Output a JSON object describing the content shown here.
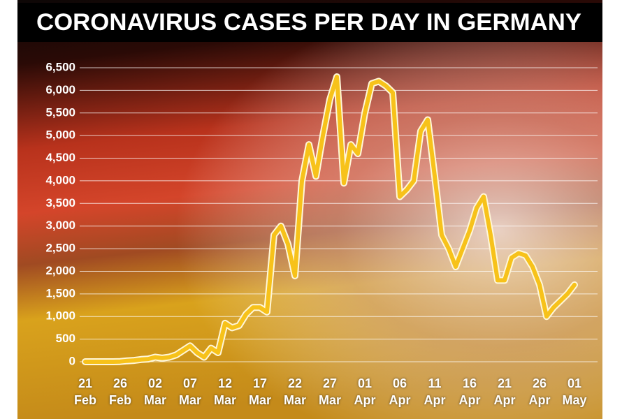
{
  "chart_data": {
    "type": "line",
    "title": "CORONAVIRUS CASES PER DAY IN GERMANY",
    "categories": [
      "21 Feb",
      null,
      null,
      null,
      null,
      "26 Feb",
      null,
      null,
      null,
      null,
      "02 Mar",
      null,
      null,
      null,
      null,
      "07 Mar",
      null,
      null,
      null,
      null,
      "12 Mar",
      null,
      null,
      null,
      null,
      "17 Mar",
      null,
      null,
      null,
      null,
      "22 Mar",
      null,
      null,
      null,
      null,
      "27 Mar",
      null,
      null,
      null,
      null,
      "01 Apr",
      null,
      null,
      null,
      null,
      "06 Apr",
      null,
      null,
      null,
      null,
      "11 Apr",
      null,
      null,
      null,
      null,
      "16 Apr",
      null,
      null,
      null,
      null,
      "21 Apr",
      null,
      null,
      null,
      null,
      "26 Apr",
      null,
      null,
      null,
      null,
      "01 May"
    ],
    "series": [
      {
        "name": "Cases per day",
        "color": "#f7c21a",
        "values": [
          0,
          0,
          0,
          0,
          0,
          5,
          20,
          30,
          50,
          60,
          100,
          80,
          100,
          150,
          250,
          350,
          200,
          100,
          300,
          200,
          850,
          750,
          800,
          1050,
          1200,
          1200,
          1100,
          2800,
          3000,
          2600,
          1900,
          4000,
          4800,
          4100,
          5000,
          5800,
          6300,
          3950,
          4800,
          4600,
          5500,
          6150,
          6200,
          6100,
          5950,
          3650,
          3800,
          4000,
          5100,
          5350,
          4100,
          2800,
          2500,
          2100,
          2500,
          2900,
          3400,
          3650,
          2800,
          1800,
          1800,
          2300,
          2400,
          2350,
          2100,
          1700,
          1000,
          1200,
          1350,
          1500,
          1700
        ]
      }
    ],
    "ylim": [
      0,
      6500
    ],
    "yticks": [
      0,
      500,
      {
        "value": 1000,
        "label": "1,000"
      },
      {
        "value": 1500,
        "label": "1,500"
      },
      {
        "value": 2000,
        "label": "2,000"
      },
      {
        "value": 2500,
        "label": "2,500"
      },
      {
        "value": 3000,
        "label": "3,000"
      },
      {
        "value": 3500,
        "label": "3,500"
      },
      {
        "value": 4000,
        "label": "4,000"
      },
      {
        "value": 4500,
        "label": "4,500"
      },
      {
        "value": 5000,
        "label": "5,000"
      },
      {
        "value": 5500,
        "label": "5,500"
      },
      {
        "value": 6000,
        "label": "6,000"
      },
      {
        "value": 6500,
        "label": "6,500"
      }
    ],
    "grid": true
  }
}
